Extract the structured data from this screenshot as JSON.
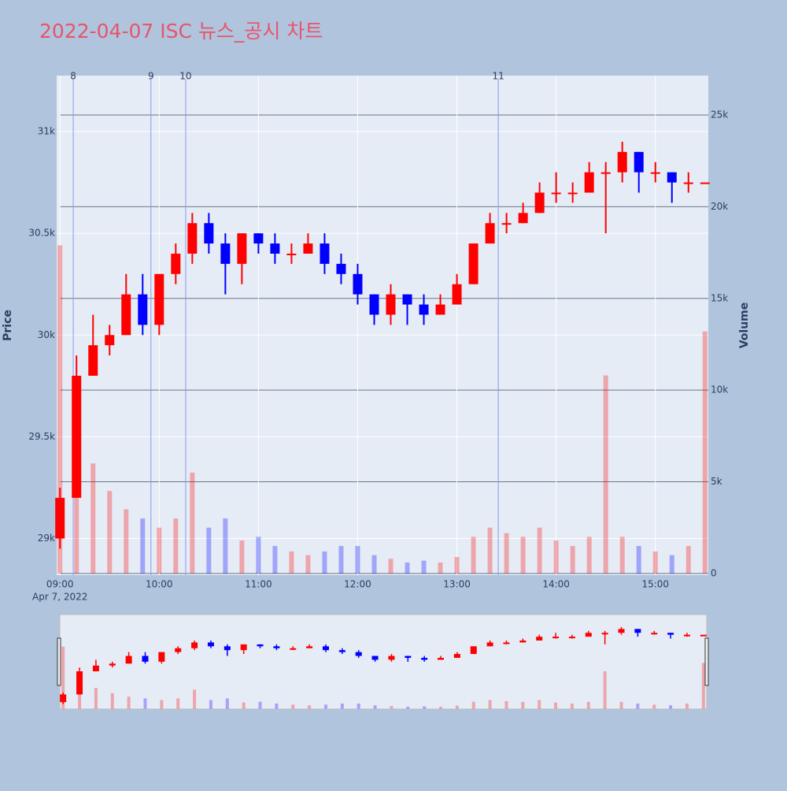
{
  "chart_data": {
    "type": "candlestick",
    "title": "2022-04-07 ISC 뉴스_공시 차트",
    "y_label": "Price",
    "y2_label": "Volume",
    "x": [
      "09:00",
      "09:10",
      "09:20",
      "09:30",
      "09:40",
      "09:50",
      "10:00",
      "10:10",
      "10:20",
      "10:30",
      "10:40",
      "10:50",
      "11:00",
      "11:10",
      "11:20",
      "11:30",
      "11:40",
      "11:50",
      "12:00",
      "12:10",
      "12:20",
      "12:30",
      "12:40",
      "12:50",
      "13:00",
      "13:10",
      "13:20",
      "13:30",
      "13:40",
      "13:50",
      "14:00",
      "14:10",
      "14:20",
      "14:30",
      "14:40",
      "14:50",
      "15:00",
      "15:10",
      "15:20",
      "15:30"
    ],
    "open": [
      29000,
      29200,
      29800,
      29950,
      30000,
      30200,
      30050,
      30300,
      30400,
      30550,
      30450,
      30350,
      30500,
      30450,
      30400,
      30400,
      30450,
      30350,
      30300,
      30200,
      30100,
      30200,
      30150,
      30100,
      30150,
      30250,
      30450,
      30550,
      30550,
      30600,
      30700,
      30700,
      30700,
      30800,
      30800,
      30900,
      30800,
      30800,
      30750,
      30750
    ],
    "high": [
      29250,
      29900,
      30100,
      30050,
      30300,
      30300,
      30300,
      30450,
      30600,
      30600,
      30500,
      30500,
      30500,
      30500,
      30450,
      30500,
      30500,
      30400,
      30350,
      30200,
      30250,
      30200,
      30200,
      30200,
      30300,
      30450,
      30600,
      30600,
      30650,
      30750,
      30800,
      30750,
      30850,
      30850,
      30950,
      30900,
      30850,
      30800,
      30800,
      30750
    ],
    "low": [
      28950,
      29200,
      29800,
      29900,
      30000,
      30000,
      30000,
      30250,
      30350,
      30400,
      30200,
      30250,
      30400,
      30350,
      30350,
      30400,
      30300,
      30250,
      30150,
      30050,
      30050,
      30050,
      30050,
      30100,
      30150,
      30250,
      30450,
      30500,
      30550,
      30600,
      30650,
      30650,
      30700,
      30500,
      30750,
      30700,
      30750,
      30650,
      30700,
      30750
    ],
    "close": [
      29200,
      29800,
      29950,
      30000,
      30200,
      30050,
      30300,
      30400,
      30550,
      30450,
      30350,
      30500,
      30450,
      30400,
      30400,
      30450,
      30350,
      30300,
      30200,
      30100,
      30200,
      30150,
      30100,
      30150,
      30250,
      30450,
      30550,
      30550,
      30600,
      30700,
      30700,
      30700,
      30800,
      30800,
      30900,
      30800,
      30800,
      30750,
      30750,
      30750
    ],
    "volume": [
      17900,
      9000,
      6000,
      4500,
      3500,
      3000,
      2500,
      3000,
      5500,
      2500,
      3000,
      1800,
      2000,
      1500,
      1200,
      1000,
      1200,
      1500,
      1500,
      1000,
      800,
      600,
      700,
      600,
      900,
      2000,
      2500,
      2200,
      2000,
      2500,
      1800,
      1500,
      2000,
      10800,
      2000,
      1500,
      1200,
      1000,
      1500,
      13200
    ],
    "up_color": "#ff0000",
    "down_color": "#0000ff",
    "xlim": [
      "08:58",
      "15:32"
    ],
    "xticks": [
      "09:00",
      "10:00",
      "11:00",
      "12:00",
      "13:00",
      "14:00",
      "15:00"
    ],
    "xtick_date": "Apr 7, 2022",
    "ylim": [
      28820,
      31275
    ],
    "yticks": [
      {
        "value": 29000,
        "label": "29k"
      },
      {
        "value": 29500,
        "label": "29.5k"
      },
      {
        "value": 30000,
        "label": "30k"
      },
      {
        "value": 30500,
        "label": "30.5k"
      },
      {
        "value": 31000,
        "label": "31k"
      }
    ],
    "y2lim": [
      -90,
      27150
    ],
    "y2ticks": [
      0,
      {
        "value": 5000,
        "label": "5k"
      },
      {
        "value": 10000,
        "label": "10k"
      },
      {
        "value": 15000,
        "label": "15k"
      },
      {
        "value": 20000,
        "label": "20k"
      },
      {
        "value": 25000,
        "label": "25k"
      }
    ],
    "grid": true,
    "news": [
      {
        "label": "8",
        "time": "09:08"
      },
      {
        "label": "9",
        "time": "09:55"
      },
      {
        "label": "10",
        "time": "10:16"
      },
      {
        "label": "11",
        "time": "13:25"
      }
    ],
    "rangeslider": true
  }
}
